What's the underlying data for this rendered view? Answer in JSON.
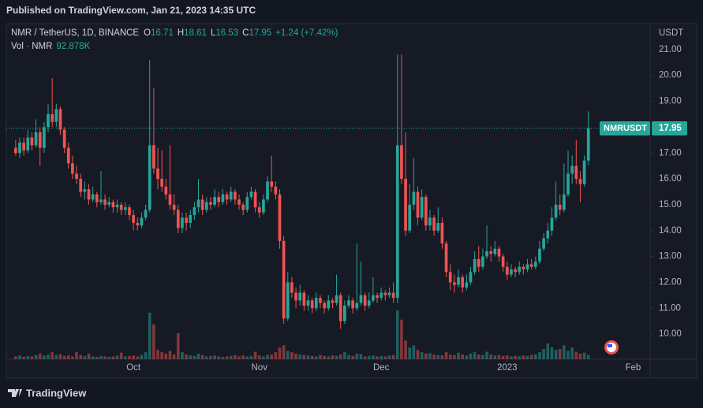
{
  "chart_data": {
    "type": "candlestick",
    "title": "Published on TradingView.com, Jan 21, 2023 14:35 UTC",
    "symbol": "NMR / TetherUS, 1D, BINANCE",
    "ohlc_header": [
      {
        "label": "O",
        "value": "16.71"
      },
      {
        "label": "H",
        "value": "18.61"
      },
      {
        "label": "L",
        "value": "16.53"
      },
      {
        "label": "C",
        "value": "17.95"
      }
    ],
    "change": "+1.24 (+7.42%)",
    "volume_label": "Vol · NMR",
    "volume_value": "92.878K",
    "y_axis_label": "USDT",
    "last_price_label": "NMRUSDT",
    "last_price": 17.95,
    "brand": "TradingView",
    "up_color": "#26a69a",
    "down_color": "#ef5350",
    "grid": false,
    "ylim": [
      9.03,
      22.0
    ],
    "yticks": [
      {
        "value": 10,
        "label": "10.00"
      },
      {
        "value": 11,
        "label": "11.00"
      },
      {
        "value": 12,
        "label": "12.00"
      },
      {
        "value": 13,
        "label": "13.00"
      },
      {
        "value": 14,
        "label": "14.00"
      },
      {
        "value": 15,
        "label": "15.00"
      },
      {
        "value": 16,
        "label": "16.00"
      },
      {
        "value": 17,
        "label": "17.00"
      },
      {
        "value": 18,
        "label": "18.00"
      },
      {
        "value": 19,
        "label": "19.00"
      },
      {
        "value": 20,
        "label": "20.00"
      },
      {
        "value": 21,
        "label": "21.00"
      }
    ],
    "xlim": [
      -2.3,
      156.2
    ],
    "xticks": [
      {
        "value": 29,
        "label": "Oct"
      },
      {
        "value": 60,
        "label": "Nov"
      },
      {
        "value": 90,
        "label": "Dec"
      },
      {
        "value": 121,
        "label": "2023"
      },
      {
        "value": 152,
        "label": "Feb"
      }
    ],
    "candles": [
      [
        17.2,
        17.5,
        16.9,
        17.0
      ],
      [
        17.0,
        17.6,
        16.8,
        17.4
      ],
      [
        17.4,
        17.6,
        16.9,
        17.1
      ],
      [
        17.1,
        17.9,
        17.0,
        17.6
      ],
      [
        17.6,
        17.8,
        17.1,
        17.3
      ],
      [
        17.3,
        18.3,
        17.2,
        17.8
      ],
      [
        17.8,
        18.0,
        16.5,
        17.2
      ],
      [
        17.2,
        18.2,
        17.0,
        18.0
      ],
      [
        18.0,
        18.9,
        17.8,
        18.5
      ],
      [
        18.5,
        19.9,
        18.0,
        18.2
      ],
      [
        18.2,
        18.9,
        18.0,
        18.7
      ],
      [
        18.7,
        18.8,
        17.7,
        17.9
      ],
      [
        17.9,
        18.0,
        17.0,
        17.2
      ],
      [
        17.2,
        17.4,
        16.4,
        16.6
      ],
      [
        16.6,
        16.9,
        16.0,
        16.2
      ],
      [
        16.2,
        16.5,
        15.8,
        16.0
      ],
      [
        16.0,
        16.2,
        15.3,
        15.5
      ],
      [
        15.5,
        15.9,
        15.2,
        15.6
      ],
      [
        15.6,
        15.8,
        15.0,
        15.2
      ],
      [
        15.2,
        15.7,
        15.1,
        15.4
      ],
      [
        15.4,
        15.5,
        14.9,
        15.1
      ],
      [
        15.1,
        16.3,
        15.0,
        15.2
      ],
      [
        15.2,
        15.4,
        14.8,
        15.0
      ],
      [
        15.0,
        15.3,
        14.9,
        15.1
      ],
      [
        15.1,
        15.2,
        14.7,
        14.9
      ],
      [
        14.9,
        15.2,
        14.7,
        15.0
      ],
      [
        15.0,
        15.1,
        14.6,
        14.8
      ],
      [
        14.8,
        15.1,
        14.6,
        14.9
      ],
      [
        14.9,
        15.0,
        14.4,
        14.6
      ],
      [
        14.6,
        14.8,
        14.0,
        14.3
      ],
      [
        14.3,
        14.5,
        14.0,
        14.2
      ],
      [
        14.2,
        14.7,
        14.1,
        14.5
      ],
      [
        14.5,
        15.0,
        14.4,
        14.8
      ],
      [
        14.8,
        20.6,
        14.7,
        17.3
      ],
      [
        17.3,
        19.5,
        16.2,
        16.4
      ],
      [
        16.4,
        17.2,
        15.6,
        16.0
      ],
      [
        16.0,
        17.1,
        15.5,
        15.7
      ],
      [
        15.7,
        16.0,
        15.2,
        15.4
      ],
      [
        15.4,
        17.3,
        14.8,
        15.0
      ],
      [
        15.0,
        15.4,
        14.6,
        14.8
      ],
      [
        14.8,
        15.0,
        13.9,
        14.1
      ],
      [
        14.1,
        14.7,
        13.9,
        14.5
      ],
      [
        14.5,
        14.7,
        14.0,
        14.3
      ],
      [
        14.3,
        14.8,
        14.1,
        14.6
      ],
      [
        14.6,
        15.1,
        14.4,
        14.9
      ],
      [
        14.9,
        16.0,
        14.7,
        15.2
      ],
      [
        15.2,
        15.4,
        14.6,
        14.8
      ],
      [
        14.8,
        15.3,
        14.7,
        15.1
      ],
      [
        15.1,
        15.3,
        14.8,
        15.0
      ],
      [
        15.0,
        15.6,
        14.9,
        15.3
      ],
      [
        15.3,
        15.5,
        14.9,
        15.1
      ],
      [
        15.1,
        15.6,
        15.0,
        15.4
      ],
      [
        15.4,
        15.5,
        15.0,
        15.2
      ],
      [
        15.2,
        15.7,
        15.1,
        15.5
      ],
      [
        15.5,
        15.6,
        15.0,
        15.2
      ],
      [
        15.2,
        15.4,
        14.8,
        15.0
      ],
      [
        15.0,
        15.1,
        14.6,
        14.8
      ],
      [
        14.8,
        15.5,
        14.7,
        15.3
      ],
      [
        15.3,
        15.7,
        15.2,
        15.5
      ],
      [
        15.5,
        15.6,
        14.7,
        14.9
      ],
      [
        14.9,
        15.1,
        14.5,
        14.7
      ],
      [
        14.7,
        15.4,
        14.6,
        15.2
      ],
      [
        15.2,
        16.1,
        15.1,
        15.9
      ],
      [
        15.9,
        16.9,
        15.5,
        15.7
      ],
      [
        15.7,
        15.9,
        15.2,
        15.4
      ],
      [
        15.4,
        15.6,
        13.3,
        13.6
      ],
      [
        13.6,
        13.8,
        10.4,
        10.6
      ],
      [
        10.6,
        12.4,
        10.5,
        12.0
      ],
      [
        12.0,
        12.2,
        11.4,
        11.6
      ],
      [
        11.6,
        11.8,
        11.0,
        11.3
      ],
      [
        11.3,
        11.9,
        11.1,
        11.6
      ],
      [
        11.6,
        11.7,
        10.9,
        11.1
      ],
      [
        11.1,
        11.5,
        10.9,
        11.3
      ],
      [
        11.3,
        11.4,
        10.8,
        11.0
      ],
      [
        11.0,
        11.6,
        10.9,
        11.4
      ],
      [
        11.4,
        11.5,
        11.0,
        11.2
      ],
      [
        11.2,
        11.3,
        10.8,
        11.0
      ],
      [
        11.0,
        11.5,
        10.9,
        11.3
      ],
      [
        11.3,
        11.4,
        11.0,
        11.2
      ],
      [
        11.2,
        12.3,
        11.1,
        11.5
      ],
      [
        11.5,
        11.6,
        10.2,
        10.5
      ],
      [
        10.5,
        11.3,
        10.4,
        11.1
      ],
      [
        11.1,
        11.5,
        11.0,
        11.3
      ],
      [
        11.3,
        11.4,
        10.8,
        11.0
      ],
      [
        11.0,
        13.5,
        10.9,
        11.2
      ],
      [
        11.2,
        12.8,
        11.1,
        11.5
      ],
      [
        11.5,
        11.6,
        10.9,
        11.1
      ],
      [
        11.1,
        11.6,
        11.0,
        11.3
      ],
      [
        11.3,
        12.2,
        11.2,
        11.5
      ],
      [
        11.5,
        11.6,
        11.2,
        11.4
      ],
      [
        11.4,
        11.8,
        11.3,
        11.6
      ],
      [
        11.6,
        11.7,
        11.3,
        11.5
      ],
      [
        11.5,
        11.8,
        11.4,
        11.6
      ],
      [
        11.6,
        12.0,
        11.2,
        11.4
      ],
      [
        11.4,
        20.8,
        11.2,
        17.3
      ],
      [
        17.3,
        20.8,
        15.8,
        16.0
      ],
      [
        16.0,
        17.8,
        13.8,
        14.0
      ],
      [
        14.0,
        15.8,
        13.9,
        15.0
      ],
      [
        15.0,
        16.8,
        14.8,
        15.5
      ],
      [
        15.5,
        15.7,
        14.2,
        14.5
      ],
      [
        14.5,
        15.6,
        14.4,
        15.3
      ],
      [
        15.3,
        15.4,
        14.0,
        14.2
      ],
      [
        14.2,
        14.8,
        14.0,
        14.5
      ],
      [
        14.5,
        14.6,
        13.8,
        14.0
      ],
      [
        14.0,
        14.9,
        13.9,
        14.3
      ],
      [
        14.3,
        14.5,
        13.3,
        13.5
      ],
      [
        13.5,
        13.6,
        12.2,
        12.4
      ],
      [
        12.4,
        12.7,
        11.7,
        12.0
      ],
      [
        12.0,
        12.3,
        11.6,
        11.9
      ],
      [
        11.9,
        12.5,
        11.8,
        12.2
      ],
      [
        12.2,
        12.3,
        11.6,
        11.8
      ],
      [
        11.8,
        12.3,
        11.7,
        12.0
      ],
      [
        12.0,
        12.6,
        11.9,
        12.4
      ],
      [
        12.4,
        13.2,
        12.3,
        12.9
      ],
      [
        12.9,
        13.4,
        12.4,
        12.6
      ],
      [
        12.6,
        13.3,
        12.5,
        13.0
      ],
      [
        13.0,
        14.2,
        12.9,
        13.2
      ],
      [
        13.2,
        13.4,
        12.8,
        13.1
      ],
      [
        13.1,
        13.6,
        13.0,
        13.3
      ],
      [
        13.3,
        13.4,
        12.8,
        13.0
      ],
      [
        13.0,
        13.1,
        12.4,
        12.6
      ],
      [
        12.6,
        12.8,
        12.1,
        12.3
      ],
      [
        12.3,
        12.7,
        12.2,
        12.5
      ],
      [
        12.5,
        12.6,
        12.2,
        12.4
      ],
      [
        12.4,
        12.8,
        12.3,
        12.6
      ],
      [
        12.6,
        12.7,
        12.3,
        12.5
      ],
      [
        12.5,
        12.9,
        12.4,
        12.7
      ],
      [
        12.7,
        12.9,
        12.5,
        12.6
      ],
      [
        12.6,
        13.0,
        12.5,
        12.8
      ],
      [
        12.8,
        13.6,
        12.7,
        13.3
      ],
      [
        13.3,
        13.9,
        13.2,
        13.7
      ],
      [
        13.7,
        14.3,
        13.5,
        14.0
      ],
      [
        14.0,
        14.9,
        13.8,
        14.5
      ],
      [
        14.5,
        15.9,
        14.4,
        15.0
      ],
      [
        15.0,
        15.4,
        14.6,
        14.8
      ],
      [
        14.8,
        16.6,
        14.7,
        15.4
      ],
      [
        15.4,
        17.1,
        15.3,
        16.2
      ],
      [
        16.2,
        16.9,
        15.8,
        16.5
      ],
      [
        16.5,
        17.5,
        15.8,
        16.0
      ],
      [
        16.0,
        16.3,
        15.1,
        15.8
      ],
      [
        15.8,
        16.9,
        15.7,
        16.71
      ],
      [
        16.71,
        18.61,
        16.53,
        17.95
      ]
    ],
    "volume": [
      60000,
      80000,
      50000,
      70000,
      60000,
      90000,
      120000,
      80000,
      100000,
      150000,
      90000,
      110000,
      70000,
      80000,
      60000,
      150000,
      90000,
      70000,
      120000,
      60000,
      50000,
      70000,
      60000,
      50000,
      60000,
      80000,
      140000,
      60000,
      70000,
      80000,
      60000,
      90000,
      150000,
      1000000,
      750000,
      200000,
      150000,
      120000,
      180000,
      100000,
      560000,
      150000,
      100000,
      80000,
      70000,
      120000,
      90000,
      60000,
      70000,
      80000,
      60000,
      50000,
      60000,
      70000,
      90000,
      60000,
      80000,
      60000,
      70000,
      160000,
      80000,
      60000,
      90000,
      100000,
      150000,
      250000,
      300000,
      180000,
      150000,
      120000,
      100000,
      90000,
      80000,
      70000,
      60000,
      90000,
      70000,
      60000,
      80000,
      70000,
      100000,
      150000,
      90000,
      70000,
      120000,
      110000,
      60000,
      70000,
      80000,
      60000,
      70000,
      60000,
      80000,
      90000,
      1050000,
      850000,
      400000,
      250000,
      300000,
      200000,
      150000,
      120000,
      130000,
      100000,
      90000,
      80000,
      150000,
      100000,
      90000,
      140000,
      100000,
      80000,
      120000,
      150000,
      100000,
      90000,
      160000,
      100000,
      80000,
      90000,
      70000,
      80000,
      60000,
      70000,
      60000,
      80000,
      70000,
      90000,
      100000,
      150000,
      220000,
      340000,
      260000,
      200000,
      220000,
      300000,
      180000,
      250000,
      160000,
      120000,
      140000,
      92878
    ]
  }
}
